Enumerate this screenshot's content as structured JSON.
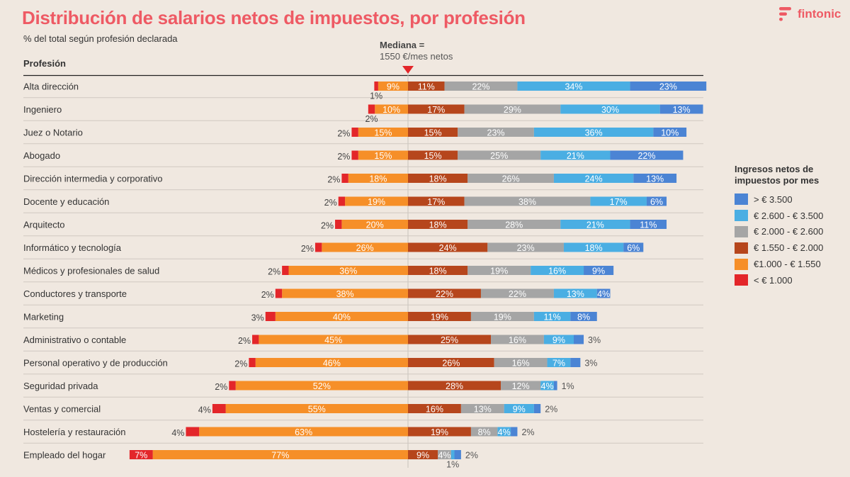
{
  "header": {
    "title": "Distribución de salarios netos de impuestos, por profesión",
    "subtitle": "% del total según profesión declarada",
    "brand": "fintonic"
  },
  "median": {
    "label_bold": "Mediana =",
    "label_value": "1550 €/mes netos"
  },
  "colors": {
    "lt1000": "#e3262a",
    "r1000_1550": "#f68f28",
    "r1550_2000": "#b6461c",
    "r2000_2600": "#a5a5a5",
    "r2600_3500": "#4aaee3",
    "gt3500": "#4b84d4",
    "accent": "#ee5a64"
  },
  "legend": {
    "title": "Ingresos netos de impuestos por mes",
    "items": [
      {
        "label": "> € 3.500",
        "color": "#4b84d4"
      },
      {
        "label": "€ 2.600 - € 3.500",
        "color": "#4aaee3"
      },
      {
        "label": "€ 2.000 - € 2.600",
        "color": "#a5a5a5"
      },
      {
        "label": "€ 1.550 - € 2.000",
        "color": "#b6461c"
      },
      {
        "label": "€1.000 - € 1.550",
        "color": "#f68f28"
      },
      {
        "label": "< € 1.000",
        "color": "#e3262a"
      }
    ]
  },
  "chart_data": {
    "type": "bar",
    "subtype": "diverging-stacked-horizontal",
    "title": "Distribución de salarios netos de impuestos, por profesión",
    "subtitle": "% del total según profesión declarada",
    "category_header": "Profesión",
    "unit": "%",
    "center_split": "Mediana = 1550 €/mes netos",
    "segments_left_of_median": [
      "< € 1.000",
      "€1.000 - € 1.550"
    ],
    "segments_right_of_median": [
      "€ 1.550 - € 2.000",
      "€ 2.000 - € 2.600",
      "€ 2.600 - € 3.500",
      "> € 3.500"
    ],
    "series_order": [
      "< € 1.000",
      "€1.000 - € 1.550",
      "€ 1.550 - € 2.000",
      "€ 2.000 - € 2.600",
      "€ 2.600 - € 3.500",
      "> € 3.500"
    ],
    "rows": [
      {
        "category": "Alta dirección",
        "values": [
          1,
          9,
          11,
          22,
          34,
          23
        ]
      },
      {
        "category": "Ingeniero",
        "values": [
          2,
          10,
          17,
          29,
          30,
          13
        ]
      },
      {
        "category": "Juez o Notario",
        "values": [
          2,
          15,
          15,
          23,
          36,
          10
        ]
      },
      {
        "category": "Abogado",
        "values": [
          2,
          15,
          15,
          25,
          21,
          22
        ]
      },
      {
        "category": "Dirección intermedia y corporativo",
        "values": [
          2,
          18,
          18,
          26,
          24,
          13
        ]
      },
      {
        "category": "Docente y educación",
        "values": [
          2,
          19,
          17,
          38,
          17,
          6
        ]
      },
      {
        "category": "Arquitecto",
        "values": [
          2,
          20,
          18,
          28,
          21,
          11
        ]
      },
      {
        "category": "Informático y tecnología",
        "values": [
          2,
          26,
          24,
          23,
          18,
          6
        ]
      },
      {
        "category": "Médicos y profesionales de salud",
        "values": [
          2,
          36,
          18,
          19,
          16,
          9
        ]
      },
      {
        "category": "Conductores y transporte",
        "values": [
          2,
          38,
          22,
          22,
          13,
          4
        ]
      },
      {
        "category": "Marketing",
        "values": [
          3,
          40,
          19,
          19,
          11,
          8
        ]
      },
      {
        "category": "Administrativo o contable",
        "values": [
          2,
          45,
          25,
          16,
          9,
          3
        ]
      },
      {
        "category": "Personal operativo y de producción",
        "values": [
          2,
          46,
          26,
          16,
          7,
          3
        ]
      },
      {
        "category": "Seguridad privada",
        "values": [
          2,
          52,
          28,
          12,
          4,
          1
        ]
      },
      {
        "category": "Ventas y comercial",
        "values": [
          4,
          55,
          16,
          13,
          9,
          2
        ]
      },
      {
        "category": "Hostelería y restauración",
        "values": [
          4,
          63,
          19,
          8,
          4,
          2
        ]
      },
      {
        "category": "Empleado del hogar",
        "values": [
          7,
          77,
          9,
          4,
          1,
          2
        ]
      }
    ]
  }
}
